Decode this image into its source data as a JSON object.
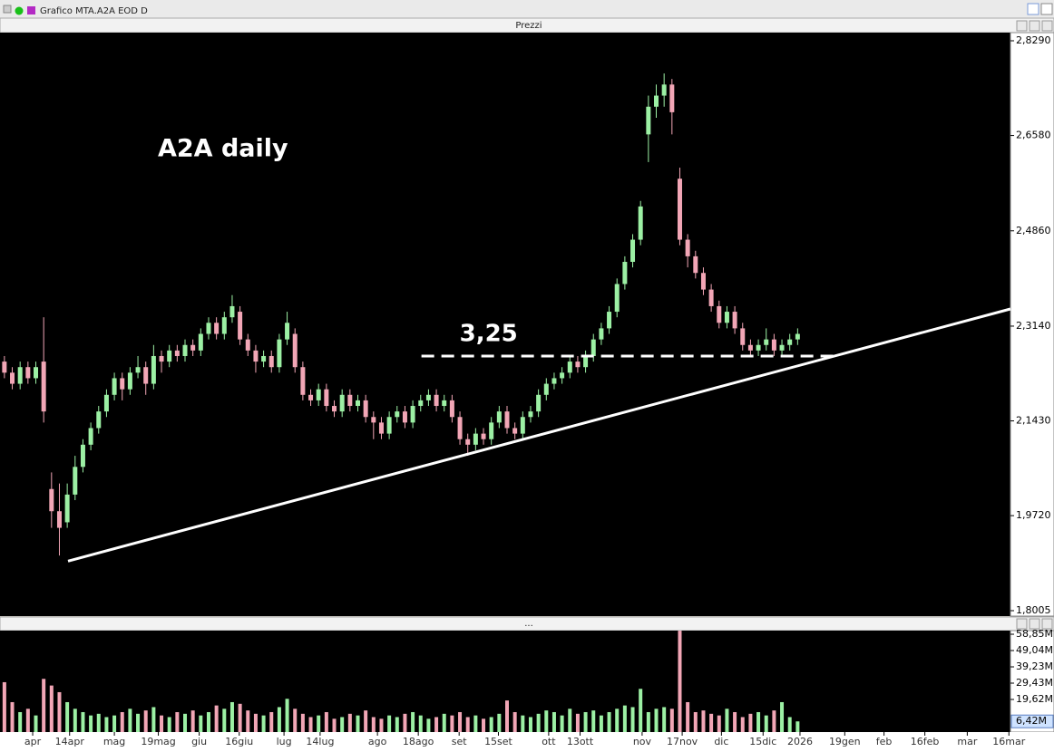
{
  "window": {
    "title": "Grafico MTA.A2A EOD D"
  },
  "chart_data": [
    {
      "type": "candlestick",
      "title": "Prezzi",
      "annotations": [
        {
          "text": "A2A daily"
        },
        {
          "text": "3,25",
          "x": [
            53.1,
            106.2
          ],
          "y": 2.26
        }
      ],
      "trendline": {
        "x": [
          8.1,
          128.1
        ],
        "y": [
          1.89,
          2.345
        ]
      },
      "up_color": "#9cf0a4",
      "down_color": "#f2a6b6",
      "xlim": [
        -0.1,
        128.1
      ],
      "ylim": [
        1.7907,
        2.8437
      ],
      "yticks": [
        {
          "value": 2.829,
          "label": "2,8290"
        },
        {
          "value": 2.658,
          "label": "2,6580"
        },
        {
          "value": 2.486,
          "label": "2,4860"
        },
        {
          "value": 2.314,
          "label": "2,3140"
        },
        {
          "value": 2.143,
          "label": "2,1430"
        },
        {
          "value": 1.972,
          "label": "1,9720"
        },
        {
          "value": 1.8005,
          "label": "1,8005"
        }
      ],
      "open": [
        2.25,
        2.23,
        2.21,
        2.24,
        2.22,
        2.25,
        2.02,
        1.98,
        1.96,
        2.01,
        2.06,
        2.1,
        2.13,
        2.16,
        2.19,
        2.22,
        2.2,
        2.23,
        2.24,
        2.21,
        2.26,
        2.25,
        2.27,
        2.26,
        2.28,
        2.27,
        2.3,
        2.32,
        2.3,
        2.33,
        2.34,
        2.29,
        2.27,
        2.25,
        2.26,
        2.24,
        2.29,
        2.3,
        2.24,
        2.19,
        2.18,
        2.2,
        2.17,
        2.16,
        2.19,
        2.17,
        2.18,
        2.15,
        2.14,
        2.12,
        2.15,
        2.16,
        2.14,
        2.17,
        2.18,
        2.19,
        2.17,
        2.18,
        2.15,
        2.11,
        2.1,
        2.12,
        2.11,
        2.14,
        2.16,
        2.13,
        2.12,
        2.15,
        2.16,
        2.19,
        2.21,
        2.22,
        2.23,
        2.25,
        2.24,
        2.26,
        2.29,
        2.31,
        2.34,
        2.39,
        2.43,
        2.47,
        2.66,
        2.71,
        2.73,
        2.75,
        2.58,
        2.47,
        2.44,
        2.41,
        2.38,
        2.35,
        2.32,
        2.34,
        2.31,
        2.28,
        2.27,
        2.28,
        2.29,
        2.27,
        2.28,
        2.29
      ],
      "high": [
        2.26,
        2.24,
        2.25,
        2.25,
        2.25,
        2.33,
        2.05,
        2.03,
        2.03,
        2.08,
        2.11,
        2.14,
        2.17,
        2.2,
        2.23,
        2.23,
        2.24,
        2.26,
        2.25,
        2.28,
        2.27,
        2.28,
        2.28,
        2.29,
        2.29,
        2.31,
        2.33,
        2.33,
        2.34,
        2.37,
        2.35,
        2.3,
        2.28,
        2.27,
        2.27,
        2.3,
        2.34,
        2.31,
        2.25,
        2.2,
        2.21,
        2.21,
        2.18,
        2.2,
        2.2,
        2.19,
        2.19,
        2.16,
        2.15,
        2.16,
        2.17,
        2.17,
        2.18,
        2.19,
        2.2,
        2.2,
        2.19,
        2.19,
        2.16,
        2.12,
        2.13,
        2.13,
        2.15,
        2.17,
        2.17,
        2.14,
        2.16,
        2.17,
        2.2,
        2.22,
        2.23,
        2.24,
        2.26,
        2.26,
        2.27,
        2.3,
        2.32,
        2.35,
        2.4,
        2.44,
        2.48,
        2.54,
        2.73,
        2.75,
        2.77,
        2.76,
        2.6,
        2.48,
        2.45,
        2.42,
        2.39,
        2.36,
        2.35,
        2.35,
        2.32,
        2.29,
        2.29,
        2.31,
        2.3,
        2.29,
        2.3,
        2.31
      ],
      "low": [
        2.22,
        2.2,
        2.2,
        2.21,
        2.21,
        2.14,
        1.95,
        1.9,
        1.95,
        2.0,
        2.05,
        2.09,
        2.12,
        2.15,
        2.18,
        2.18,
        2.19,
        2.22,
        2.19,
        2.2,
        2.23,
        2.24,
        2.25,
        2.25,
        2.26,
        2.26,
        2.29,
        2.29,
        2.29,
        2.32,
        2.28,
        2.26,
        2.23,
        2.24,
        2.23,
        2.23,
        2.28,
        2.23,
        2.18,
        2.17,
        2.17,
        2.16,
        2.15,
        2.15,
        2.16,
        2.16,
        2.14,
        2.11,
        2.11,
        2.11,
        2.14,
        2.13,
        2.13,
        2.16,
        2.17,
        2.16,
        2.16,
        2.14,
        2.1,
        2.08,
        2.09,
        2.1,
        2.1,
        2.13,
        2.12,
        2.11,
        2.11,
        2.14,
        2.15,
        2.18,
        2.2,
        2.21,
        2.22,
        2.23,
        2.23,
        2.25,
        2.28,
        2.3,
        2.33,
        2.38,
        2.42,
        2.46,
        2.61,
        2.69,
        2.71,
        2.66,
        2.46,
        2.42,
        2.4,
        2.37,
        2.34,
        2.31,
        2.31,
        2.3,
        2.27,
        2.26,
        2.26,
        2.27,
        2.26,
        2.26,
        2.27,
        2.28
      ],
      "close": [
        2.23,
        2.21,
        2.24,
        2.22,
        2.24,
        2.16,
        1.98,
        1.95,
        2.01,
        2.06,
        2.1,
        2.13,
        2.16,
        2.19,
        2.22,
        2.2,
        2.23,
        2.24,
        2.21,
        2.26,
        2.25,
        2.27,
        2.26,
        2.28,
        2.27,
        2.3,
        2.32,
        2.3,
        2.33,
        2.35,
        2.29,
        2.27,
        2.25,
        2.26,
        2.24,
        2.29,
        2.32,
        2.24,
        2.19,
        2.18,
        2.2,
        2.17,
        2.16,
        2.19,
        2.17,
        2.18,
        2.15,
        2.14,
        2.12,
        2.15,
        2.16,
        2.14,
        2.17,
        2.18,
        2.19,
        2.17,
        2.18,
        2.15,
        2.11,
        2.1,
        2.12,
        2.11,
        2.14,
        2.16,
        2.13,
        2.12,
        2.15,
        2.16,
        2.19,
        2.21,
        2.22,
        2.23,
        2.25,
        2.24,
        2.26,
        2.29,
        2.31,
        2.34,
        2.39,
        2.43,
        2.47,
        2.53,
        2.71,
        2.73,
        2.75,
        2.7,
        2.47,
        2.44,
        2.41,
        2.38,
        2.35,
        2.32,
        2.34,
        2.31,
        2.28,
        2.27,
        2.28,
        2.29,
        2.27,
        2.28,
        2.29,
        2.3
      ]
    },
    {
      "type": "bar",
      "title": "...",
      "xlim": [
        -0.1,
        128.1
      ],
      "ylim": [
        0,
        61.04
      ],
      "yticks": [
        {
          "value": 58.85,
          "label": "58,85M"
        },
        {
          "value": 49.04,
          "label": "49,04M"
        },
        {
          "value": 39.23,
          "label": "39,23M"
        },
        {
          "value": 29.43,
          "label": "29,43M"
        },
        {
          "value": 19.62,
          "label": "19,62M"
        }
      ],
      "last_value": {
        "value": 6.42,
        "label": "6,42M"
      },
      "xticks": [
        {
          "value": 3.6,
          "label": "apr"
        },
        {
          "value": 8.3,
          "label": "14apr"
        },
        {
          "value": 14,
          "label": "mag"
        },
        {
          "value": 19.6,
          "label": "19mag"
        },
        {
          "value": 24.8,
          "label": "giu"
        },
        {
          "value": 29.9,
          "label": "16giu"
        },
        {
          "value": 35.6,
          "label": "lug"
        },
        {
          "value": 40.2,
          "label": "14lug"
        },
        {
          "value": 47.5,
          "label": "ago"
        },
        {
          "value": 52.7,
          "label": "18ago"
        },
        {
          "value": 57.9,
          "label": "set"
        },
        {
          "value": 62.9,
          "label": "15set"
        },
        {
          "value": 69.3,
          "label": "ott"
        },
        {
          "value": 73.3,
          "label": "13ott"
        },
        {
          "value": 81.2,
          "label": "nov"
        },
        {
          "value": 86.3,
          "label": "17nov"
        },
        {
          "value": 91.3,
          "label": "dic"
        },
        {
          "value": 96.6,
          "label": "15dic"
        },
        {
          "value": 101.3,
          "label": "2026"
        },
        {
          "value": 107,
          "label": "19gen"
        },
        {
          "value": 112,
          "label": "feb"
        },
        {
          "value": 117.2,
          "label": "16feb"
        },
        {
          "value": 122.6,
          "label": "mar"
        },
        {
          "value": 127.9,
          "label": "16mar"
        }
      ],
      "values": [
        30,
        18,
        12,
        14,
        10,
        32,
        28,
        24,
        18,
        14,
        12,
        10,
        11,
        9,
        10,
        12,
        14,
        11,
        13,
        15,
        10,
        9,
        12,
        11,
        13,
        10,
        12,
        16,
        14,
        18,
        17,
        13,
        11,
        10,
        12,
        15,
        20,
        14,
        11,
        9,
        10,
        12,
        8,
        9,
        11,
        10,
        13,
        9,
        8,
        10,
        9,
        11,
        12,
        10,
        8,
        9,
        11,
        10,
        12,
        9,
        10,
        8,
        9,
        11,
        19,
        12,
        10,
        9,
        11,
        13,
        12,
        10,
        14,
        11,
        12,
        13,
        10,
        12,
        14,
        16,
        15,
        26,
        12,
        14,
        15,
        14,
        61,
        18,
        12,
        13,
        11,
        10,
        14,
        12,
        9,
        11,
        12,
        10,
        13,
        18,
        9,
        6.42
      ]
    }
  ]
}
